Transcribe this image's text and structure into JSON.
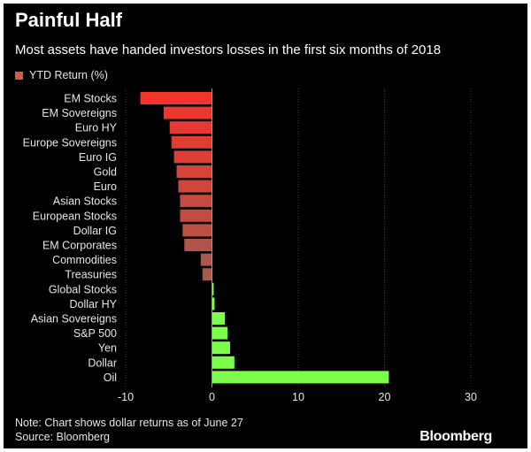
{
  "header": {
    "title": "Painful Half",
    "subtitle": "Most assets have handed investors losses in the first six months of 2018"
  },
  "legend": {
    "label": "YTD Return (%)"
  },
  "footer": {
    "note": "Note: Chart shows dollar returns as of June 27",
    "source": "Source: Bloomberg",
    "brand": "Bloomberg"
  },
  "colors": {
    "negative_top": "#f2342a",
    "negative_bottom": "#a85a4e",
    "positive": "#7bff4a",
    "grid": "#3a3a3a",
    "background": "#000000"
  },
  "chart_data": {
    "type": "bar",
    "orientation": "horizontal",
    "title": "Painful Half",
    "subtitle": "Most assets have handed investors losses in the first six months of 2018",
    "categories": [
      "EM Stocks",
      "EM Sovereigns",
      "Euro HY",
      "Europe Sovereigns",
      "Euro IG",
      "Gold",
      "Euro",
      "Asian Stocks",
      "European Stocks",
      "Dollar IG",
      "EM Corporates",
      "Commodities",
      "Treasuries",
      "Global Stocks",
      "Dollar HY",
      "Asian Sovereigns",
      "S&P 500",
      "Yen",
      "Dollar",
      "Oil"
    ],
    "series": [
      {
        "name": "YTD Return (%)",
        "values": [
          -8.3,
          -5.6,
          -4.9,
          -4.7,
          -4.4,
          -4.1,
          -3.9,
          -3.7,
          -3.7,
          -3.4,
          -3.2,
          -1.3,
          -1.1,
          0.2,
          0.3,
          1.5,
          1.8,
          2.1,
          2.6,
          20.5
        ]
      }
    ],
    "xlim": [
      -10,
      30
    ],
    "xticks": [
      -10,
      0,
      10,
      20,
      30
    ],
    "grid": true,
    "legend": "top-left"
  }
}
